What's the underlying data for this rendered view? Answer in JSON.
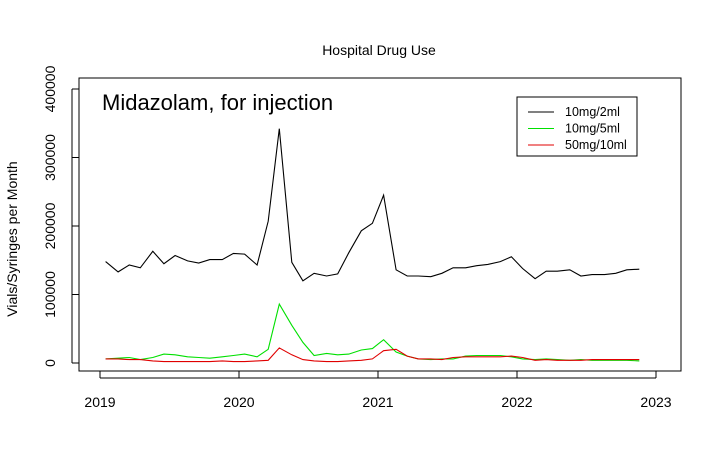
{
  "chart_data": {
    "type": "line",
    "title": "Hospital Drug Use",
    "subtitle": "Midazolam, for injection",
    "xlabel": "",
    "ylabel": "Vials/Syringes per Month",
    "xlim": [
      2019.0,
      2023.0
    ],
    "ylim": [
      0,
      400000
    ],
    "x_ticks": [
      2019,
      2020,
      2021,
      2022,
      2023
    ],
    "y_ticks": [
      0,
      100000,
      200000,
      300000,
      400000
    ],
    "grid": false,
    "legend_position": "top-right",
    "x": [
      2019.04,
      2019.13,
      2019.21,
      2019.29,
      2019.38,
      2019.46,
      2019.54,
      2019.63,
      2019.71,
      2019.79,
      2019.88,
      2019.96,
      2020.04,
      2020.13,
      2020.21,
      2020.29,
      2020.38,
      2020.46,
      2020.54,
      2020.63,
      2020.71,
      2020.79,
      2020.88,
      2020.96,
      2021.04,
      2021.13,
      2021.21,
      2021.29,
      2021.38,
      2021.46,
      2021.54,
      2021.63,
      2021.71,
      2021.79,
      2021.88,
      2021.96,
      2022.04,
      2022.13,
      2022.21,
      2022.29,
      2022.38,
      2022.46,
      2022.54,
      2022.63,
      2022.71,
      2022.79,
      2022.88
    ],
    "series": [
      {
        "name": "10mg/2ml",
        "color": "#000000",
        "values": [
          148000,
          133000,
          143000,
          139000,
          163000,
          145000,
          157000,
          149000,
          146000,
          151000,
          151000,
          160000,
          159000,
          143000,
          207000,
          342000,
          147000,
          120000,
          131000,
          127000,
          130000,
          161000,
          193000,
          204000,
          245000,
          136000,
          127000,
          127000,
          126000,
          131000,
          139000,
          139000,
          142000,
          144000,
          148000,
          155000,
          138000,
          123000,
          134000,
          134000,
          136000,
          127000,
          129000,
          129000,
          131000,
          136000,
          137000
        ]
      },
      {
        "name": "10mg/5ml",
        "color": "#00e000",
        "values": [
          6000,
          7000,
          8000,
          5000,
          8000,
          13000,
          12000,
          9000,
          8000,
          7000,
          9000,
          11000,
          13000,
          9000,
          20000,
          86000,
          55000,
          30000,
          11000,
          14000,
          12000,
          13000,
          19000,
          21000,
          34000,
          16000,
          10000,
          6000,
          5000,
          6000,
          6000,
          10000,
          11000,
          11000,
          11000,
          9000,
          6000,
          5000,
          6000,
          5000,
          4000,
          5000,
          4000,
          4000,
          4000,
          4000,
          3000
        ]
      },
      {
        "name": "50mg/10ml",
        "color": "#e00000",
        "values": [
          6000,
          6000,
          5000,
          5000,
          3000,
          2000,
          2000,
          2000,
          2000,
          2000,
          3000,
          2000,
          2000,
          3000,
          4000,
          22000,
          12000,
          5000,
          3000,
          2000,
          2000,
          3000,
          4000,
          6000,
          18000,
          20000,
          10000,
          6000,
          6000,
          5000,
          8000,
          9000,
          9000,
          9000,
          9000,
          10000,
          8000,
          4000,
          5000,
          4000,
          4000,
          4000,
          5000,
          5000,
          5000,
          5000,
          5000
        ]
      }
    ]
  }
}
